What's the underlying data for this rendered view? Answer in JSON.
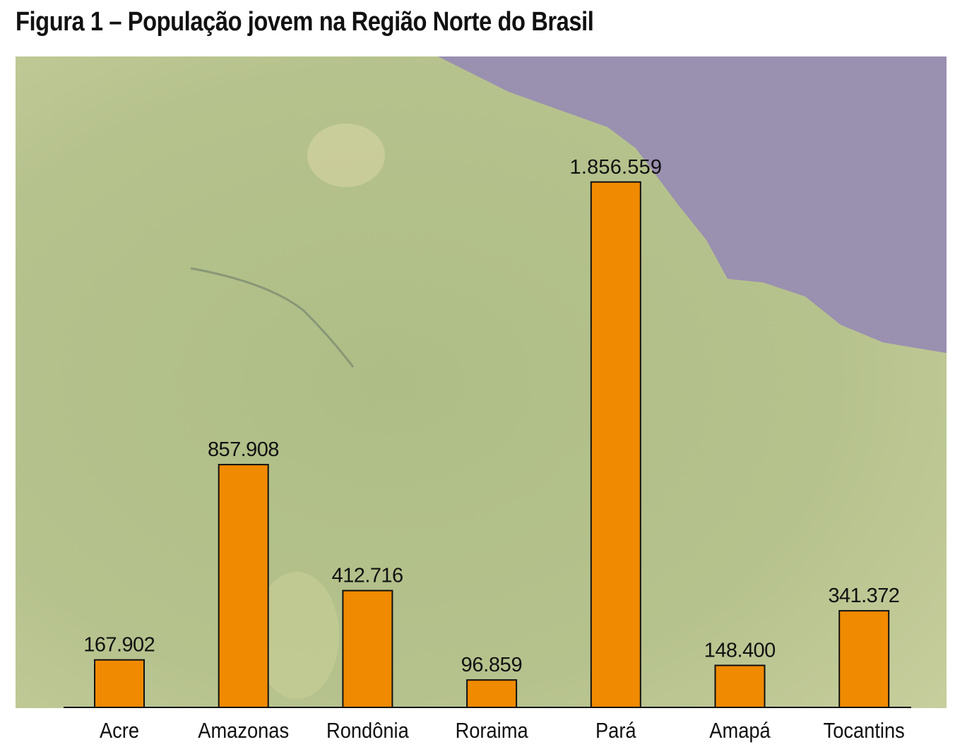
{
  "chart_data": {
    "type": "bar",
    "title": "Figura 1 – População jovem na Região Norte do Brasil",
    "categories": [
      "Acre",
      "Amazonas",
      "Rondônia",
      "Roraima",
      "Pará",
      "Amapá",
      "Tocantins"
    ],
    "values": [
      167902,
      857908,
      412716,
      96859,
      1856559,
      148400,
      341372
    ],
    "data_labels": [
      "167.902",
      "857.908",
      "412.716",
      "96.859",
      "1.856.559",
      "148.400",
      "341.372"
    ],
    "xlabel": "",
    "ylabel": "",
    "ylim": [
      0,
      2300000
    ],
    "grid": false,
    "colors": {
      "bar": "#f08a00",
      "sea": "#9a90b0",
      "land": "#b9c48f"
    }
  }
}
